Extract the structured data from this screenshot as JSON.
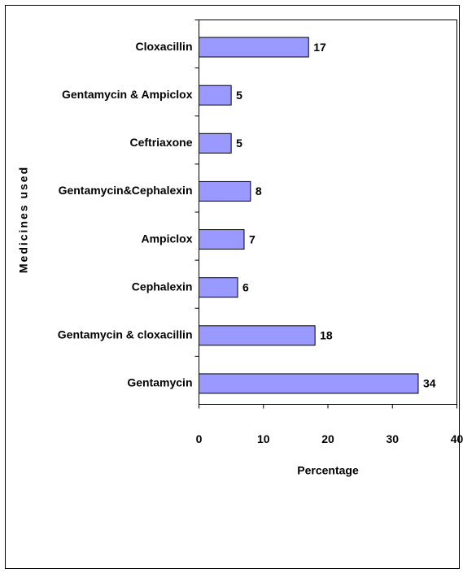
{
  "chart_data": {
    "type": "bar",
    "orientation": "horizontal",
    "x_label": "Percentage",
    "y_label": "Medicines used",
    "categories": [
      "Cloxacillin",
      "Gentamycin & Ampiclox",
      "Ceftriaxone",
      "Gentamycin&Cephalexin",
      "Ampiclox",
      "Cephalexin",
      "Gentamycin & cloxacillin",
      "Gentamycin"
    ],
    "values": [
      17,
      5,
      5,
      8,
      7,
      6,
      18,
      34
    ],
    "color": "#9999ff",
    "xlim": [
      0,
      40
    ],
    "xticks": [
      0,
      10,
      20,
      30,
      40
    ],
    "grid": false
  }
}
